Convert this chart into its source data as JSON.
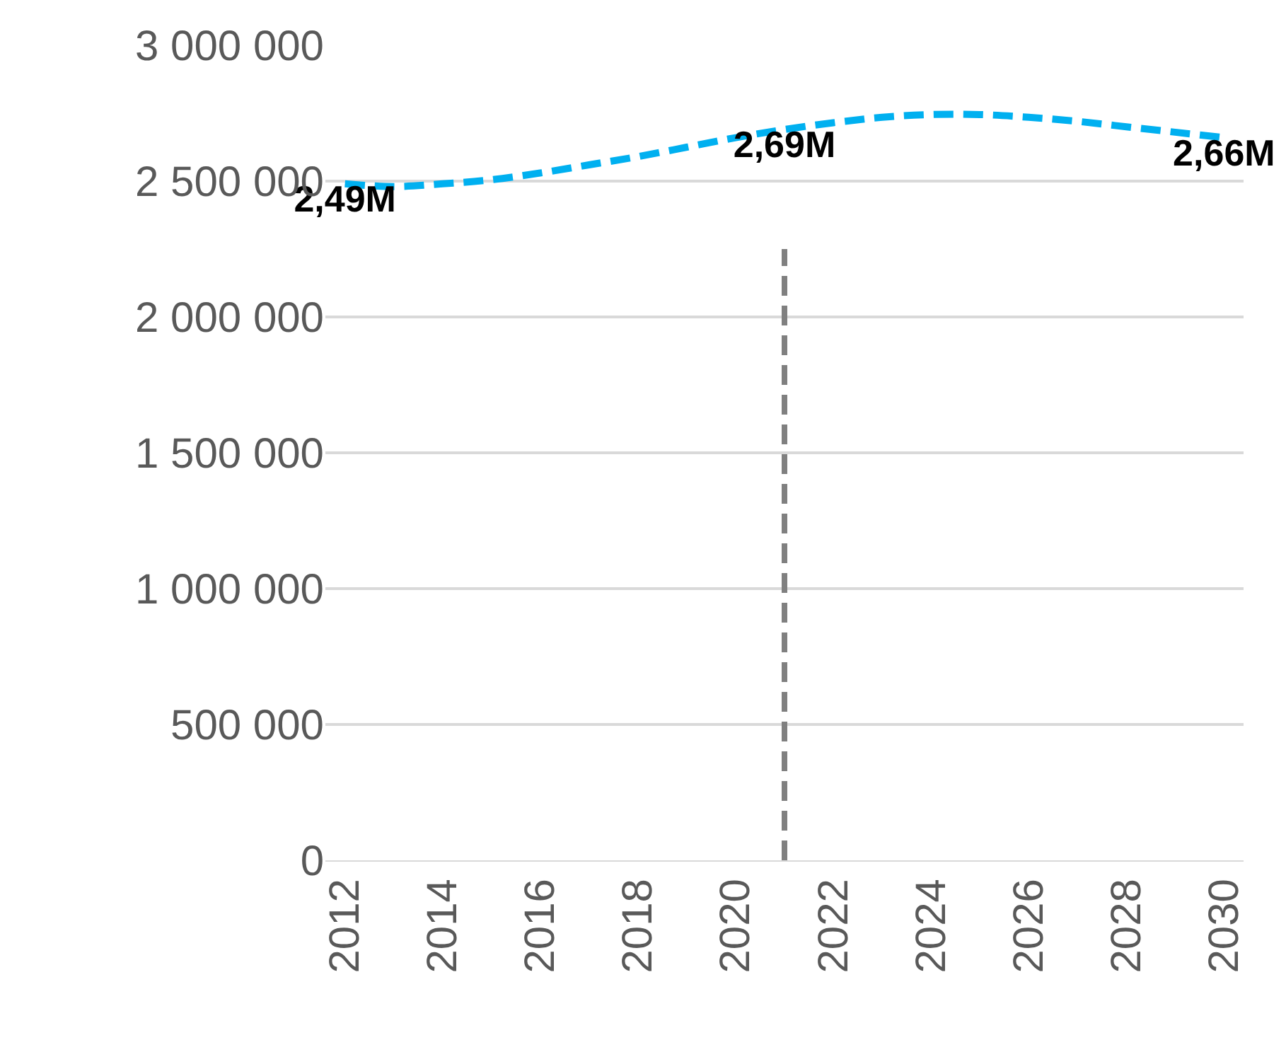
{
  "chart_data": {
    "type": "line",
    "x": [
      2012,
      2013,
      2014,
      2015,
      2016,
      2017,
      2018,
      2019,
      2020,
      2021,
      2022,
      2023,
      2024,
      2025,
      2026,
      2027,
      2028,
      2029,
      2030
    ],
    "series": [
      {
        "color": "#00b0f0",
        "values": [
          2490000,
          2480000,
          2490000,
          2505000,
          2530000,
          2560000,
          2590000,
          2625000,
          2660000,
          2690000,
          2715000,
          2735000,
          2745000,
          2745000,
          2735000,
          2720000,
          2700000,
          2680000,
          2660000
        ],
        "value_labels": [
          "2,49M",
          null,
          null,
          null,
          null,
          null,
          null,
          null,
          null,
          "2,69M",
          null,
          null,
          null,
          null,
          null,
          null,
          null,
          null,
          "2,66M"
        ]
      }
    ],
    "line_style": "dashed",
    "marker": "none",
    "xlim": [
      2011.6,
      2030.4
    ],
    "xticks": [
      2012,
      2014,
      2016,
      2018,
      2020,
      2022,
      2024,
      2026,
      2028,
      2030
    ],
    "ylim": [
      0,
      3000000
    ],
    "yticks": [
      {
        "value": 0,
        "label": "0"
      },
      {
        "value": 500000,
        "label": "500 000"
      },
      {
        "value": 1000000,
        "label": "1 000 000"
      },
      {
        "value": 1500000,
        "label": "1 500 000"
      },
      {
        "value": 2000000,
        "label": "2 000 000"
      },
      {
        "value": 2500000,
        "label": "2 500 000"
      },
      {
        "value": 3000000,
        "label": "3 000 000"
      }
    ],
    "grid": "y",
    "legend": false,
    "ref_lines": [
      {
        "axis": "x",
        "value": 2021,
        "color": "#808080",
        "line_style": "dashed"
      }
    ]
  }
}
